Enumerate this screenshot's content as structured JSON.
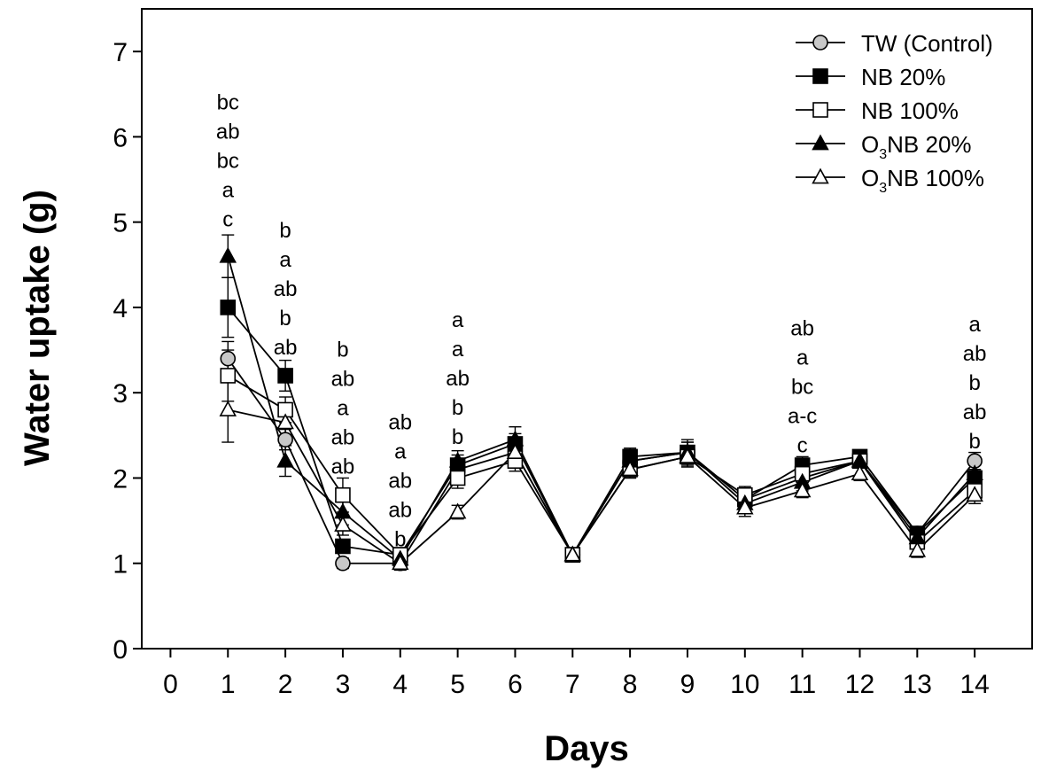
{
  "chart_data": {
    "type": "line",
    "title": "",
    "xlabel": "Days",
    "ylabel": "Water uptake (g)",
    "xlim": [
      -0.5,
      15.0
    ],
    "ylim": [
      0,
      7.5
    ],
    "x": [
      1,
      2,
      3,
      4,
      5,
      6,
      7,
      8,
      9,
      10,
      11,
      12,
      13,
      14
    ],
    "x_ticks": [
      0,
      1,
      2,
      3,
      4,
      5,
      6,
      7,
      8,
      9,
      10,
      11,
      12,
      13,
      14
    ],
    "x_tick_labels": [
      "0",
      "1",
      "2",
      "3",
      "4",
      "5",
      "6",
      "7",
      "8",
      "9",
      "10",
      "11",
      "12",
      "13",
      "14"
    ],
    "y_ticks": [
      0,
      1,
      2,
      3,
      4,
      5,
      6,
      7
    ],
    "y_tick_labels": [
      "0",
      "1",
      "2",
      "3",
      "4",
      "5",
      "6",
      "7"
    ],
    "grid": false,
    "legend_position": "top-right",
    "series": [
      {
        "name": "TW (Control)",
        "label_main": "TW (Control)",
        "label_sub": "",
        "label_tail": "",
        "marker": "circle",
        "marker_fill": "#c8c8c8",
        "values": [
          3.4,
          2.45,
          1.0,
          1.0,
          2.1,
          2.3,
          1.1,
          2.2,
          2.3,
          1.75,
          2.0,
          2.2,
          1.35,
          2.2
        ],
        "errors": [
          0.2,
          0.12,
          0.06,
          0.08,
          0.1,
          0.12,
          0.08,
          0.1,
          0.12,
          0.1,
          0.1,
          0.08,
          0.08,
          0.1
        ]
      },
      {
        "name": "NB 20%",
        "label_main": "NB 20%",
        "label_sub": "",
        "label_tail": "",
        "marker": "square",
        "marker_fill": "#000000",
        "values": [
          4.0,
          3.2,
          1.2,
          1.1,
          2.15,
          2.4,
          1.1,
          2.25,
          2.3,
          1.75,
          2.15,
          2.25,
          1.35,
          2.0
        ],
        "errors": [
          0.35,
          0.18,
          0.08,
          0.08,
          0.12,
          0.12,
          0.08,
          0.1,
          0.12,
          0.1,
          0.1,
          0.08,
          0.08,
          0.1
        ]
      },
      {
        "name": "NB 100%",
        "label_main": "NB 100%",
        "label_sub": "",
        "label_tail": "",
        "marker": "square",
        "marker_fill": "#ffffff",
        "values": [
          3.2,
          2.8,
          1.8,
          1.1,
          2.0,
          2.2,
          1.1,
          2.1,
          2.25,
          1.8,
          2.05,
          2.2,
          1.25,
          1.85
        ],
        "errors": [
          0.3,
          0.15,
          0.2,
          0.08,
          0.12,
          0.12,
          0.08,
          0.1,
          0.12,
          0.1,
          0.1,
          0.08,
          0.08,
          0.1
        ]
      },
      {
        "name": "O3NB 20%",
        "label_main": "O",
        "label_sub": "3",
        "label_tail": "NB 20%",
        "marker": "triangle",
        "marker_fill": "#000000",
        "values": [
          4.6,
          2.2,
          1.6,
          1.05,
          2.2,
          2.45,
          1.1,
          2.2,
          2.3,
          1.7,
          1.95,
          2.2,
          1.3,
          2.05
        ],
        "errors": [
          0.25,
          0.18,
          0.15,
          0.08,
          0.12,
          0.15,
          0.08,
          0.1,
          0.15,
          0.1,
          0.1,
          0.08,
          0.08,
          0.1
        ]
      },
      {
        "name": "O3NB 100%",
        "label_main": "O",
        "label_sub": "3",
        "label_tail": "NB 100%",
        "marker": "triangle",
        "marker_fill": "#ffffff",
        "values": [
          2.8,
          2.65,
          1.45,
          1.0,
          1.6,
          2.3,
          1.1,
          2.1,
          2.25,
          1.65,
          1.85,
          2.05,
          1.15,
          1.8
        ],
        "errors": [
          0.38,
          0.15,
          0.12,
          0.06,
          0.08,
          0.12,
          0.08,
          0.1,
          0.12,
          0.1,
          0.08,
          0.08,
          0.08,
          0.1
        ]
      }
    ],
    "significance_letters": [
      {
        "x": 1,
        "base_y": 4.95,
        "letters": [
          "bc",
          "ab",
          "bc",
          "a",
          "c"
        ]
      },
      {
        "x": 2,
        "base_y": 3.45,
        "letters": [
          "b",
          "a",
          "ab",
          "b",
          "ab"
        ]
      },
      {
        "x": 3,
        "base_y": 2.05,
        "letters": [
          "b",
          "ab",
          "a",
          "ab",
          "ab"
        ]
      },
      {
        "x": 4,
        "base_y": 1.2,
        "letters": [
          "ab",
          "a",
          "ab",
          "ab",
          "b"
        ]
      },
      {
        "x": 5,
        "base_y": 2.4,
        "letters": [
          "a",
          "a",
          "ab",
          "b",
          "b"
        ]
      },
      {
        "x": 11,
        "base_y": 2.3,
        "letters": [
          "ab",
          "a",
          "bc",
          "a-c",
          "c"
        ]
      },
      {
        "x": 14,
        "base_y": 2.35,
        "letters": [
          "a",
          "ab",
          "b",
          "ab",
          "b"
        ]
      }
    ]
  }
}
